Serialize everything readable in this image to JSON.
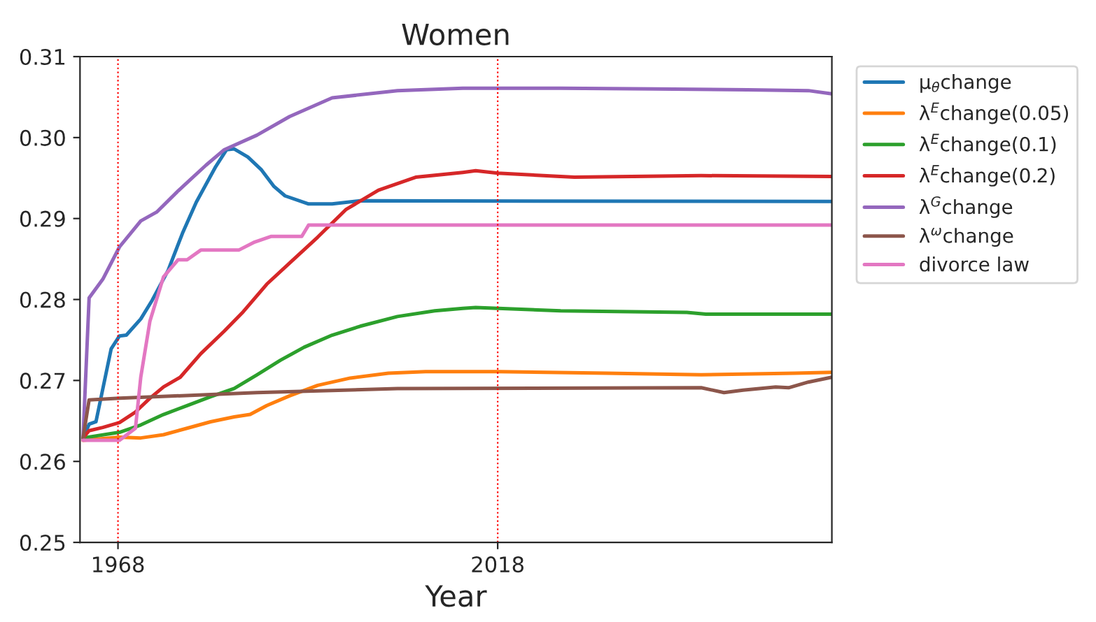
{
  "chart_data": {
    "type": "line",
    "title": "Women",
    "xlabel": "Year",
    "xlim": [
      1963,
      2062
    ],
    "xticks": [
      1968,
      2018
    ],
    "ylim": [
      0.25,
      0.31
    ],
    "yticks": [
      {
        "value": 0.25,
        "label": "0.25"
      },
      {
        "value": 0.26,
        "label": "0.26"
      },
      {
        "value": 0.27,
        "label": "0.27"
      },
      {
        "value": 0.28,
        "label": "0.28"
      },
      {
        "value": 0.29,
        "label": "0.29"
      },
      {
        "value": 0.3,
        "label": "0.30"
      },
      {
        "value": 0.31,
        "label": "0.31"
      }
    ],
    "grid": false,
    "legend": "right",
    "line_style": "solid",
    "marker": "none",
    "ref_lines": [
      {
        "axis": "x",
        "value": 1968,
        "color": "#ff0000",
        "line_style": "dotted"
      },
      {
        "axis": "x",
        "value": 2018,
        "color": "#ff0000",
        "line_style": "dotted"
      }
    ],
    "series": [
      {
        "name": "μ$_{θ}$change",
        "color": "#1f77b4",
        "x": [
          1963.4,
          1964.2,
          1965.1,
          1967.1,
          1968.2,
          1969.1,
          1971,
          1972.5,
          1974.6,
          1976.5,
          1978.3,
          1980.8,
          1982.3,
          1983.3,
          1985.1,
          1986.9,
          1988.5,
          1990,
          1993.1,
          1996.2,
          1999.9,
          2062
        ],
        "values": [
          0.2629,
          0.2646,
          0.2649,
          0.2739,
          0.2755,
          0.2756,
          0.2776,
          0.2799,
          0.2836,
          0.2882,
          0.292,
          0.2963,
          0.2985,
          0.2986,
          0.2976,
          0.296,
          0.294,
          0.2928,
          0.2918,
          0.2918,
          0.2922,
          0.2921
        ]
      },
      {
        "name": "λ$^{E}$change(0.05)",
        "color": "#ff7f0e",
        "x": [
          1963.4,
          1968.2,
          1971,
          1974,
          1977.1,
          1980.2,
          1983.3,
          1985.4,
          1987.6,
          1990.6,
          1994.3,
          1998.6,
          2003.6,
          2008.5,
          2013.4,
          2018,
          2032.4,
          2044.8,
          2057.1,
          2062
        ],
        "values": [
          0.2626,
          0.263,
          0.2629,
          0.2633,
          0.2641,
          0.2649,
          0.2655,
          0.2658,
          0.2669,
          0.2681,
          0.2694,
          0.2703,
          0.2709,
          0.2711,
          0.2711,
          0.2711,
          0.2709,
          0.2707,
          0.2709,
          0.271
        ]
      },
      {
        "name": "λ$^{E}$change(0.1)",
        "color": "#2ca02c",
        "x": [
          1963.4,
          1968.2,
          1971,
          1974,
          1977.1,
          1980.2,
          1983.3,
          1986.3,
          1989.4,
          1992.5,
          1996.2,
          1999.9,
          2004.8,
          2009.7,
          2013.4,
          2015.1,
          2026.3,
          2042.9,
          2045.4,
          2062
        ],
        "values": [
          0.2629,
          0.2636,
          0.2645,
          0.2658,
          0.2669,
          0.268,
          0.269,
          0.2707,
          0.2725,
          0.2741,
          0.2756,
          0.2767,
          0.2779,
          0.2786,
          0.2789,
          0.279,
          0.2786,
          0.2784,
          0.2782,
          0.2782
        ]
      },
      {
        "name": "λ$^{E}$change(0.2)",
        "color": "#d62728",
        "x": [
          1963.4,
          1964.2,
          1966,
          1968.2,
          1970.3,
          1972.2,
          1974,
          1976.2,
          1978.9,
          1982,
          1984.5,
          1987.6,
          1990.6,
          1994.3,
          1998,
          2002.3,
          2007.2,
          2013.4,
          2015.1,
          2018,
          2028.1,
          2044.8,
          2062
        ],
        "values": [
          0.2629,
          0.2638,
          0.2642,
          0.2648,
          0.2661,
          0.2678,
          0.2692,
          0.2704,
          0.2733,
          0.2761,
          0.2785,
          0.2819,
          0.2845,
          0.2877,
          0.2911,
          0.2935,
          0.2951,
          0.2957,
          0.2959,
          0.2956,
          0.2951,
          0.2953,
          0.2952
        ]
      },
      {
        "name": "λ$^{G}$change",
        "color": "#9467bd",
        "x": [
          1963.4,
          1964.2,
          1966,
          1968.2,
          1971,
          1973.1,
          1975.9,
          1979.6,
          1982,
          1986.3,
          1990.6,
          1996.2,
          2004.8,
          2013.4,
          2026.3,
          2038.6,
          2050.9,
          2058.9,
          2062
        ],
        "values": [
          0.2629,
          0.2802,
          0.2825,
          0.2865,
          0.2897,
          0.2908,
          0.2934,
          0.2966,
          0.2985,
          0.3003,
          0.3026,
          0.3049,
          0.3058,
          0.3061,
          0.3061,
          0.306,
          0.3059,
          0.3058,
          0.3054
        ]
      },
      {
        "name": "λ$^{ω}$change",
        "color": "#8c564b",
        "x": [
          1963.4,
          1964.2,
          1968.2,
          1986.3,
          2004.8,
          2044.8,
          2047.8,
          2050.3,
          2054.6,
          2056.3,
          2058.9,
          2062
        ],
        "values": [
          0.2629,
          0.2676,
          0.2678,
          0.2685,
          0.269,
          0.2691,
          0.2685,
          0.2688,
          0.2692,
          0.2691,
          0.2698,
          0.2704
        ]
      },
      {
        "name": "divorce law",
        "color": "#e377c2",
        "x": [
          1963.4,
          1968.2,
          1970.3,
          1971,
          1972.2,
          1974,
          1975.9,
          1977.1,
          1978.9,
          1983.9,
          1986,
          1988.2,
          1992.2,
          1993.1,
          2062
        ],
        "values": [
          0.2626,
          0.2626,
          0.2641,
          0.2704,
          0.2773,
          0.2828,
          0.2849,
          0.2849,
          0.2861,
          0.2861,
          0.2871,
          0.2878,
          0.2878,
          0.2892,
          0.2892
        ]
      }
    ]
  }
}
